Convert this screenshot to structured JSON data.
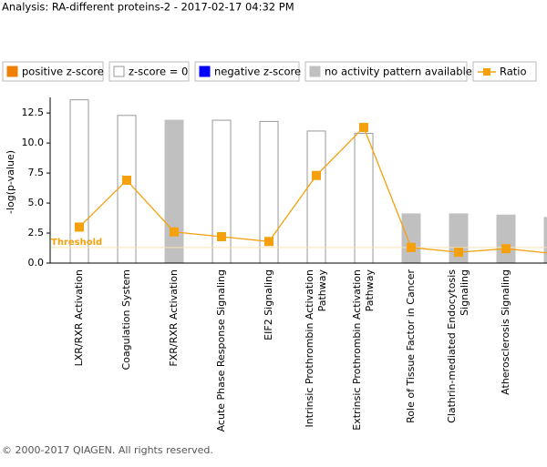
{
  "header": {
    "title": "Analysis: RA-different proteins-2 - 2017-02-17 04:32 PM"
  },
  "chart_data": {
    "type": "bar",
    "ylabel": "-log(p-value)",
    "legend": [
      {
        "name": "positive z-score",
        "color": "#f08000"
      },
      {
        "name": "z-score = 0",
        "color": "#ffffff"
      },
      {
        "name": "negative z-score",
        "color": "#0000ff"
      },
      {
        "name": "no activity pattern available",
        "color": "#c0c0c0"
      }
    ],
    "categories": [
      "LXR/RXR Activation",
      "Coagulation System",
      "FXR/RXR Activation",
      "Acute Phase Response Signaling",
      "EIF2 Signaling",
      "Intrinsic Prothrombin Activation Pathway",
      "Extrinsic Prothrombin Activation Pathway",
      "Role of Tissue Factor in Cancer",
      "Clathrin-mediated Endocytosis Signaling",
      "Atherosclerosis Signaling",
      null
    ],
    "values": [
      13.6,
      12.3,
      11.9,
      11.9,
      11.8,
      11.0,
      10.8,
      4.1,
      4.1,
      4.0,
      3.8
    ],
    "bar_colors": [
      "#ffffff",
      "#ffffff",
      "#c0c0c0",
      "#ffffff",
      "#ffffff",
      "#ffffff",
      "#ffffff",
      "#c0c0c0",
      "#c0c0c0",
      "#c0c0c0",
      "#c0c0c0"
    ],
    "ratio": {
      "name": "Ratio",
      "color": "#f5a00f",
      "values": [
        3.0,
        6.9,
        2.6,
        2.2,
        1.8,
        7.3,
        11.3,
        1.3,
        0.9,
        1.2,
        0.8
      ]
    },
    "threshold": {
      "label": "Threshold",
      "value": 1.3,
      "color": "#f5a00f"
    },
    "ylim": [
      0,
      13.8
    ],
    "yticks": [
      {
        "value": 0,
        "label": "0.0"
      },
      2.5,
      {
        "value": 5,
        "label": "5.0"
      },
      7.5,
      {
        "value": 10,
        "label": "10.0"
      },
      12.5
    ]
  },
  "footer": {
    "text": "© 2000-2017 QIAGEN. All rights reserved."
  }
}
